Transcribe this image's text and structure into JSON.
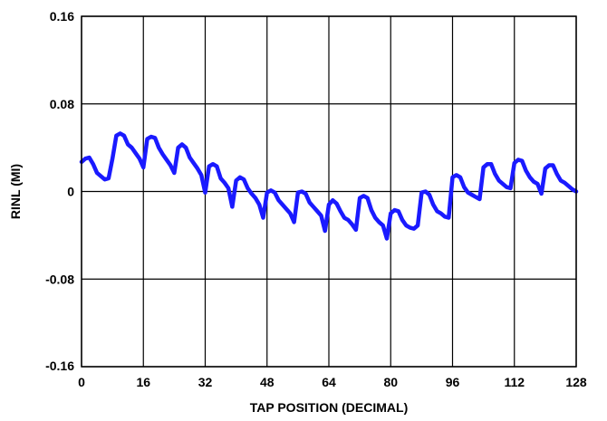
{
  "chart_data": {
    "type": "line",
    "title": "",
    "xlabel": "TAP POSITION (DECIMAL)",
    "ylabel": "RINL (MI)",
    "xlim": [
      0,
      128
    ],
    "ylim": [
      -0.16,
      0.16
    ],
    "xticks": [
      0,
      16,
      32,
      48,
      64,
      80,
      96,
      112,
      128
    ],
    "xtick_labels": [
      "0",
      "16",
      "32",
      "48",
      "64",
      "80",
      "96",
      "112",
      "128"
    ],
    "yticks": [
      0.16,
      0.08,
      0,
      -0.08,
      -0.16
    ],
    "ytick_labels": [
      "0.16",
      "0.08",
      "0",
      "-0.08",
      "-0.16"
    ],
    "grid": true,
    "series_color": "#1a1aff",
    "series": [
      {
        "values_note": "",
        "x": [
          0,
          1,
          2,
          3,
          4,
          5,
          6,
          7,
          8,
          9,
          10,
          11,
          12,
          13,
          14,
          15,
          16,
          17,
          18,
          19,
          20,
          21,
          22,
          23,
          24,
          25,
          26,
          27,
          28,
          29,
          30,
          31,
          32,
          33,
          34,
          35,
          36,
          37,
          38,
          39,
          40,
          41,
          42,
          43,
          44,
          45,
          46,
          47,
          48,
          49,
          50,
          51,
          52,
          53,
          54,
          55,
          56,
          57,
          58,
          59,
          60,
          61,
          62,
          63,
          64,
          65,
          66,
          67,
          68,
          69,
          70,
          71,
          72,
          73,
          74,
          75,
          76,
          77,
          78,
          79,
          80,
          81,
          82,
          83,
          84,
          85,
          86,
          87,
          88,
          89,
          90,
          91,
          92,
          93,
          94,
          95,
          96,
          97,
          98,
          99,
          100,
          101,
          102,
          103,
          104,
          105,
          106,
          107,
          108,
          109,
          110,
          111,
          112,
          113,
          114,
          115,
          116,
          117,
          118,
          119,
          120,
          121,
          122,
          123,
          124,
          125,
          126,
          127,
          128
        ],
        "values": [
          0.027,
          0.03,
          0.031,
          0.025,
          0.017,
          0.014,
          0.011,
          0.012,
          0.03,
          0.051,
          0.053,
          0.051,
          0.043,
          0.04,
          0.035,
          0.03,
          0.022,
          0.048,
          0.05,
          0.049,
          0.04,
          0.034,
          0.029,
          0.024,
          0.017,
          0.04,
          0.043,
          0.04,
          0.031,
          0.026,
          0.021,
          0.015,
          -0.001,
          0.023,
          0.025,
          0.023,
          0.012,
          0.008,
          0.003,
          -0.014,
          0.01,
          0.013,
          0.011,
          0.003,
          -0.002,
          -0.006,
          -0.012,
          -0.024,
          -0.001,
          0.001,
          -0.001,
          -0.008,
          -0.012,
          -0.016,
          -0.02,
          -0.028,
          -0.001,
          0.0,
          -0.002,
          -0.01,
          -0.014,
          -0.018,
          -0.022,
          -0.036,
          -0.012,
          -0.008,
          -0.011,
          -0.018,
          -0.024,
          -0.026,
          -0.03,
          -0.035,
          -0.006,
          -0.004,
          -0.006,
          -0.017,
          -0.024,
          -0.028,
          -0.031,
          -0.043,
          -0.02,
          -0.017,
          -0.018,
          -0.026,
          -0.031,
          -0.033,
          -0.034,
          -0.031,
          -0.001,
          0.0,
          -0.003,
          -0.012,
          -0.018,
          -0.02,
          -0.023,
          -0.024,
          0.013,
          0.015,
          0.013,
          0.004,
          -0.001,
          -0.003,
          -0.005,
          -0.007,
          0.022,
          0.025,
          0.025,
          0.016,
          0.01,
          0.007,
          0.004,
          0.003,
          0.026,
          0.029,
          0.028,
          0.019,
          0.013,
          0.009,
          0.007,
          -0.002,
          0.021,
          0.024,
          0.024,
          0.016,
          0.01,
          0.008,
          0.005,
          0.002,
          0.0
        ]
      }
    ]
  }
}
